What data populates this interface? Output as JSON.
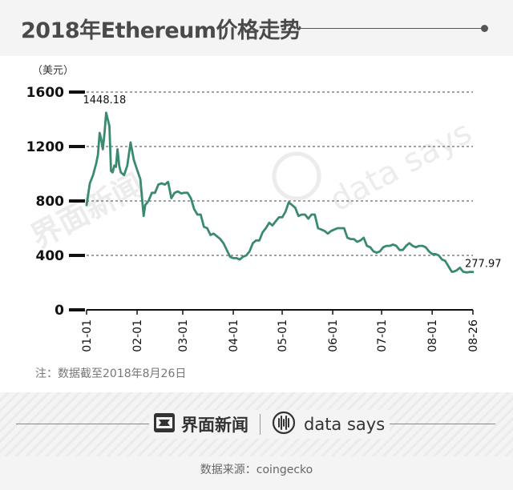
{
  "title": "2018年Ethereum价格走势",
  "note": "注：数据截至2018年8月26日",
  "source": "数据来源：coingecko",
  "brand": {
    "jiemian": "界面新闻",
    "datasays": "data says"
  },
  "watermark": {
    "jiemian": "界面新闻",
    "datasays": "data says"
  },
  "colors": {
    "line": "#3a8a72",
    "axis": "#111111",
    "grid": "#444444"
  },
  "chart_data": {
    "type": "line",
    "title": "2018年Ethereum价格走势",
    "ylabel": "（美元）",
    "ylim": [
      0,
      1600
    ],
    "yticks": [
      0,
      400,
      800,
      1200,
      1600
    ],
    "xlim": [
      "2018-01-01",
      "2018-08-26"
    ],
    "xticks": [
      {
        "date": "2018-01-01",
        "label": "01-01"
      },
      {
        "date": "2018-02-01",
        "label": "02-01"
      },
      {
        "date": "2018-03-01",
        "label": "03-01"
      },
      {
        "date": "2018-04-01",
        "label": "04-01"
      },
      {
        "date": "2018-05-01",
        "label": "05-01"
      },
      {
        "date": "2018-06-01",
        "label": "06-01"
      },
      {
        "date": "2018-07-01",
        "label": "07-01"
      },
      {
        "date": "2018-08-01",
        "label": "08-01"
      },
      {
        "date": "2018-08-26",
        "label": "08-26"
      }
    ],
    "grid": "horizontal-dashed",
    "annotations": [
      {
        "date": "2018-01-13",
        "value": 1448.18,
        "label": "1448.18"
      },
      {
        "date": "2018-08-26",
        "value": 277.97,
        "label": "277.97"
      }
    ],
    "series": [
      {
        "points": [
          [
            "2018-01-01",
            770
          ],
          [
            "2018-01-03",
            930
          ],
          [
            "2018-01-05",
            990
          ],
          [
            "2018-01-07",
            1080
          ],
          [
            "2018-01-08",
            1140
          ],
          [
            "2018-01-09",
            1300
          ],
          [
            "2018-01-10",
            1250
          ],
          [
            "2018-01-11",
            1180
          ],
          [
            "2018-01-12",
            1300
          ],
          [
            "2018-01-13",
            1448
          ],
          [
            "2018-01-14",
            1400
          ],
          [
            "2018-01-15",
            1350
          ],
          [
            "2018-01-16",
            1020
          ],
          [
            "2018-01-17",
            1010
          ],
          [
            "2018-01-18",
            1060
          ],
          [
            "2018-01-19",
            1050
          ],
          [
            "2018-01-20",
            1180
          ],
          [
            "2018-01-21",
            1060
          ],
          [
            "2018-01-22",
            1010
          ],
          [
            "2018-01-24",
            990
          ],
          [
            "2018-01-26",
            1060
          ],
          [
            "2018-01-28",
            1230
          ],
          [
            "2018-01-30",
            1100
          ],
          [
            "2018-02-01",
            1030
          ],
          [
            "2018-02-03",
            960
          ],
          [
            "2018-02-05",
            690
          ],
          [
            "2018-02-06",
            770
          ],
          [
            "2018-02-08",
            800
          ],
          [
            "2018-02-10",
            860
          ],
          [
            "2018-02-12",
            860
          ],
          [
            "2018-02-14",
            920
          ],
          [
            "2018-02-16",
            930
          ],
          [
            "2018-02-18",
            920
          ],
          [
            "2018-02-20",
            940
          ],
          [
            "2018-02-22",
            820
          ],
          [
            "2018-02-24",
            860
          ],
          [
            "2018-02-26",
            870
          ],
          [
            "2018-02-28",
            855
          ],
          [
            "2018-03-02",
            860
          ],
          [
            "2018-03-04",
            860
          ],
          [
            "2018-03-06",
            820
          ],
          [
            "2018-03-08",
            740
          ],
          [
            "2018-03-10",
            700
          ],
          [
            "2018-03-12",
            700
          ],
          [
            "2018-03-14",
            610
          ],
          [
            "2018-03-16",
            600
          ],
          [
            "2018-03-18",
            550
          ],
          [
            "2018-03-20",
            560
          ],
          [
            "2018-03-22",
            540
          ],
          [
            "2018-03-24",
            520
          ],
          [
            "2018-03-26",
            490
          ],
          [
            "2018-03-28",
            440
          ],
          [
            "2018-03-30",
            390
          ],
          [
            "2018-04-01",
            380
          ],
          [
            "2018-04-03",
            380
          ],
          [
            "2018-04-05",
            370
          ],
          [
            "2018-04-07",
            390
          ],
          [
            "2018-04-09",
            400
          ],
          [
            "2018-04-11",
            430
          ],
          [
            "2018-04-13",
            490
          ],
          [
            "2018-04-15",
            510
          ],
          [
            "2018-04-17",
            510
          ],
          [
            "2018-04-19",
            570
          ],
          [
            "2018-04-21",
            600
          ],
          [
            "2018-04-23",
            640
          ],
          [
            "2018-04-25",
            620
          ],
          [
            "2018-04-27",
            650
          ],
          [
            "2018-04-29",
            680
          ],
          [
            "2018-05-01",
            680
          ],
          [
            "2018-05-03",
            720
          ],
          [
            "2018-05-05",
            790
          ],
          [
            "2018-05-07",
            770
          ],
          [
            "2018-05-09",
            750
          ],
          [
            "2018-05-11",
            690
          ],
          [
            "2018-05-13",
            700
          ],
          [
            "2018-05-15",
            700
          ],
          [
            "2018-05-17",
            670
          ],
          [
            "2018-05-19",
            700
          ],
          [
            "2018-05-21",
            700
          ],
          [
            "2018-05-23",
            600
          ],
          [
            "2018-05-25",
            590
          ],
          [
            "2018-05-27",
            580
          ],
          [
            "2018-05-29",
            560
          ],
          [
            "2018-05-31",
            580
          ],
          [
            "2018-06-02",
            590
          ],
          [
            "2018-06-04",
            600
          ],
          [
            "2018-06-06",
            600
          ],
          [
            "2018-06-08",
            600
          ],
          [
            "2018-06-10",
            530
          ],
          [
            "2018-06-12",
            520
          ],
          [
            "2018-06-14",
            520
          ],
          [
            "2018-06-16",
            500
          ],
          [
            "2018-06-18",
            510
          ],
          [
            "2018-06-20",
            530
          ],
          [
            "2018-06-22",
            470
          ],
          [
            "2018-06-24",
            460
          ],
          [
            "2018-06-26",
            430
          ],
          [
            "2018-06-28",
            420
          ],
          [
            "2018-06-30",
            430
          ],
          [
            "2018-07-02",
            460
          ],
          [
            "2018-07-04",
            470
          ],
          [
            "2018-07-06",
            470
          ],
          [
            "2018-07-08",
            480
          ],
          [
            "2018-07-10",
            470
          ],
          [
            "2018-07-12",
            440
          ],
          [
            "2018-07-14",
            440
          ],
          [
            "2018-07-16",
            470
          ],
          [
            "2018-07-18",
            490
          ],
          [
            "2018-07-20",
            470
          ],
          [
            "2018-07-22",
            460
          ],
          [
            "2018-07-24",
            470
          ],
          [
            "2018-07-26",
            470
          ],
          [
            "2018-07-28",
            460
          ],
          [
            "2018-07-30",
            430
          ],
          [
            "2018-08-01",
            410
          ],
          [
            "2018-08-03",
            410
          ],
          [
            "2018-08-05",
            400
          ],
          [
            "2018-08-07",
            370
          ],
          [
            "2018-08-09",
            360
          ],
          [
            "2018-08-11",
            320
          ],
          [
            "2018-08-13",
            280
          ],
          [
            "2018-08-14",
            280
          ],
          [
            "2018-08-16",
            290
          ],
          [
            "2018-08-18",
            310
          ],
          [
            "2018-08-20",
            280
          ],
          [
            "2018-08-22",
            275
          ],
          [
            "2018-08-24",
            278
          ],
          [
            "2018-08-26",
            278
          ]
        ]
      }
    ]
  }
}
